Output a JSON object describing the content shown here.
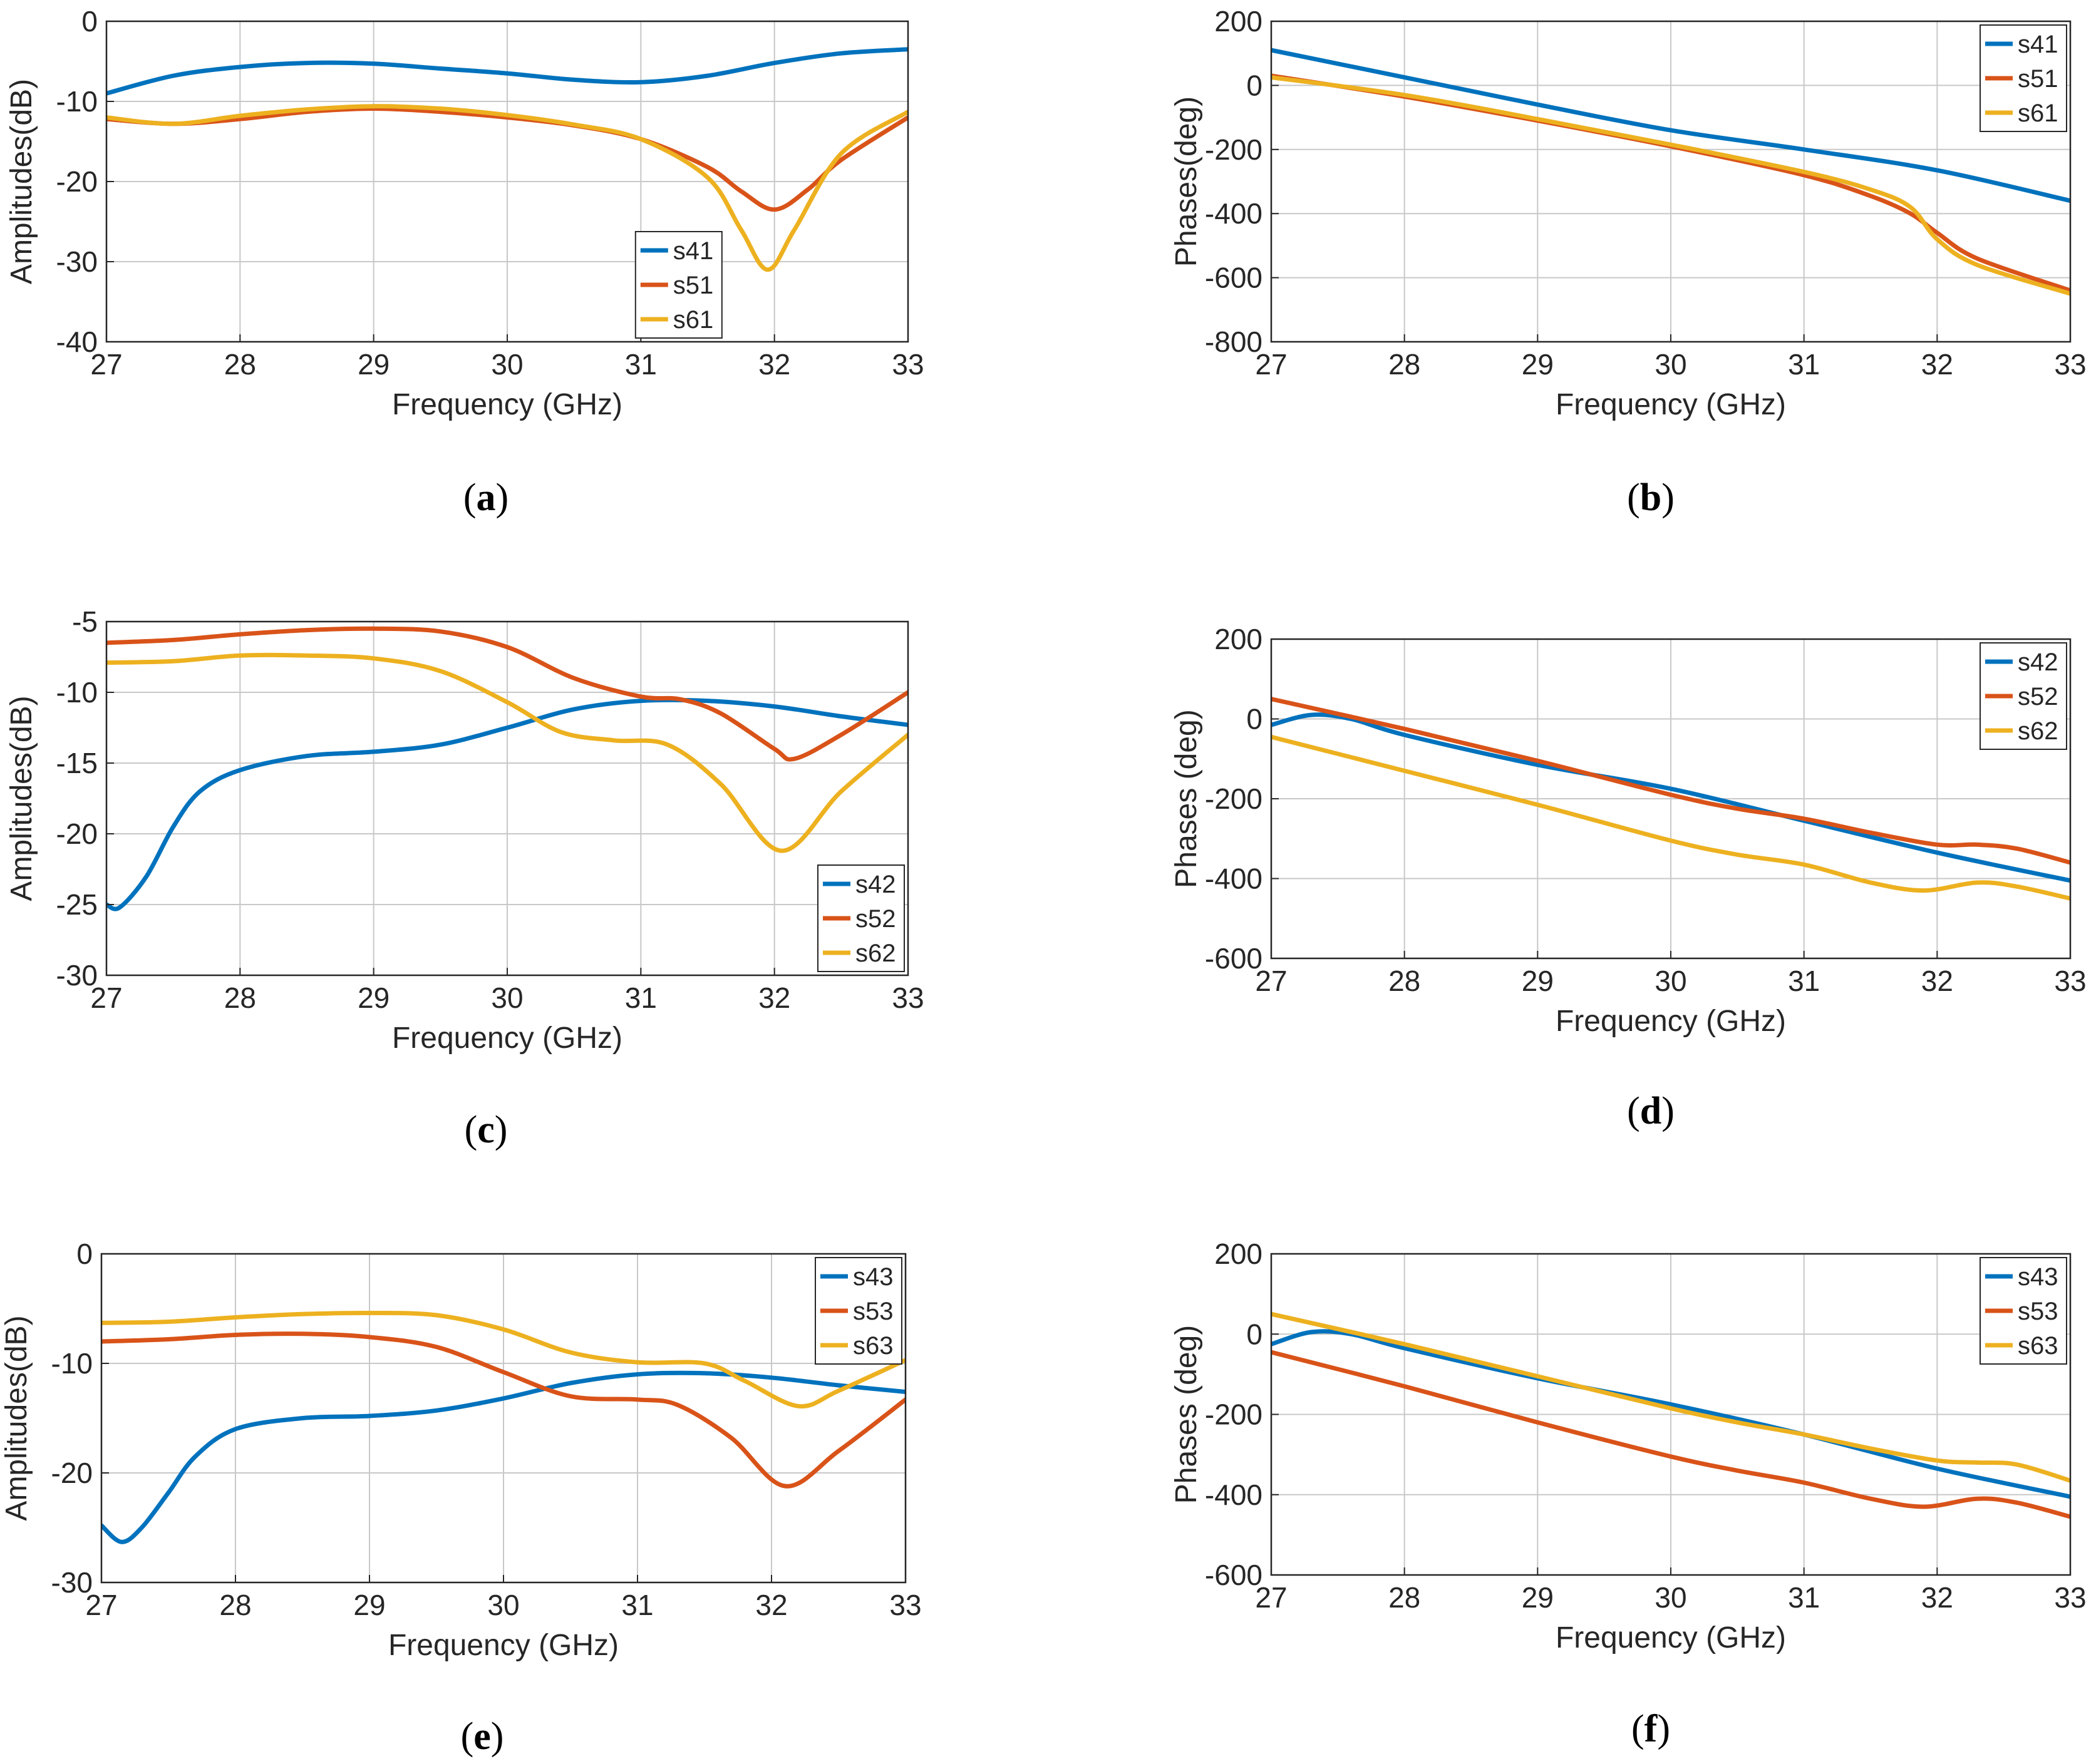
{
  "chart_data": [
    {
      "type": "line",
      "panel": "a",
      "caption": "a",
      "xlabel": "Frequency (GHz)",
      "ylabel": "Amplitudes(dB)",
      "xlim": [
        27,
        33
      ],
      "ylim": [
        -40,
        0
      ],
      "xticks": [
        27,
        28,
        29,
        30,
        31,
        32,
        33
      ],
      "yticks": [
        -40,
        -30,
        -20,
        -10,
        0
      ],
      "grid": true,
      "legend_position": "bottom-center",
      "series": [
        {
          "name": "s41",
          "color": "#0072BD",
          "x": [
            27,
            27.5,
            28,
            28.5,
            29,
            29.5,
            30,
            30.5,
            31,
            31.5,
            32,
            32.5,
            33
          ],
          "y": [
            -9,
            -6.8,
            -5.7,
            -5.2,
            -5.3,
            -5.9,
            -6.5,
            -7.3,
            -7.6,
            -6.8,
            -5.2,
            -4,
            -3.5
          ]
        },
        {
          "name": "s51",
          "color": "#D95319",
          "x": [
            27,
            27.5,
            28,
            28.5,
            29,
            29.5,
            30,
            30.5,
            31,
            31.5,
            31.75,
            32,
            32.25,
            32.5,
            33
          ],
          "y": [
            -12.2,
            -12.8,
            -12.2,
            -11.3,
            -10.9,
            -11.3,
            -12,
            -13,
            -14.7,
            -18.2,
            -21.2,
            -23.5,
            -21,
            -17.3,
            -12
          ]
        },
        {
          "name": "s61",
          "color": "#EDB120",
          "x": [
            27,
            27.5,
            28,
            28.5,
            29,
            29.5,
            30,
            30.5,
            31,
            31.5,
            31.75,
            31.95,
            32.15,
            32.5,
            33
          ],
          "y": [
            -12,
            -12.8,
            -11.8,
            -11,
            -10.6,
            -10.9,
            -11.7,
            -12.9,
            -14.7,
            -19.5,
            -26,
            -31,
            -26,
            -16.5,
            -11.3
          ]
        }
      ]
    },
    {
      "type": "line",
      "panel": "b",
      "caption": "b",
      "xlabel": "Frequency (GHz)",
      "ylabel": "Phases(deg)",
      "xlim": [
        27,
        33
      ],
      "ylim": [
        -800,
        200
      ],
      "xticks": [
        27,
        28,
        29,
        30,
        31,
        32,
        33
      ],
      "yticks": [
        -800,
        -600,
        -400,
        -200,
        0,
        200
      ],
      "grid": true,
      "legend_position": "top-right",
      "series": [
        {
          "name": "s41",
          "color": "#0072BD",
          "x": [
            27,
            28,
            29,
            30,
            31,
            32,
            33
          ],
          "y": [
            110,
            25,
            -60,
            -140,
            -200,
            -265,
            -360
          ]
        },
        {
          "name": "s51",
          "color": "#D95319",
          "x": [
            27,
            28,
            29,
            30,
            31,
            31.5,
            31.8,
            32,
            32.3,
            33
          ],
          "y": [
            30,
            -35,
            -110,
            -190,
            -280,
            -345,
            -400,
            -460,
            -540,
            -640
          ]
        },
        {
          "name": "s61",
          "color": "#EDB120",
          "x": [
            27,
            28,
            29,
            30,
            31,
            31.5,
            31.8,
            32,
            32.3,
            33
          ],
          "y": [
            25,
            -30,
            -105,
            -185,
            -270,
            -325,
            -380,
            -480,
            -560,
            -650
          ]
        }
      ]
    },
    {
      "type": "line",
      "panel": "c",
      "caption": "c",
      "xlabel": "Frequency (GHz)",
      "ylabel": "Amplitudes(dB)",
      "xlim": [
        27,
        33
      ],
      "ylim": [
        -30,
        -5
      ],
      "xticks": [
        27,
        28,
        29,
        30,
        31,
        32,
        33
      ],
      "yticks": [
        -30,
        -25,
        -20,
        -15,
        -10,
        -5
      ],
      "grid": true,
      "legend_position": "bottom-right",
      "series": [
        {
          "name": "s42",
          "color": "#0072BD",
          "x": [
            27,
            27.1,
            27.3,
            27.5,
            27.7,
            28,
            28.5,
            29,
            29.5,
            30,
            30.5,
            31,
            31.5,
            32,
            32.5,
            33
          ],
          "y": [
            -25,
            -25.2,
            -23,
            -19.5,
            -17,
            -15.5,
            -14.5,
            -14.2,
            -13.7,
            -12.5,
            -11.2,
            -10.6,
            -10.6,
            -11,
            -11.7,
            -12.3
          ]
        },
        {
          "name": "s52",
          "color": "#D95319",
          "x": [
            27,
            27.5,
            28,
            28.5,
            29,
            29.5,
            30,
            30.5,
            31,
            31.3,
            31.6,
            32,
            32.15,
            32.5,
            33
          ],
          "y": [
            -6.5,
            -6.3,
            -5.9,
            -5.6,
            -5.5,
            -5.7,
            -6.8,
            -9,
            -10.3,
            -10.5,
            -11.5,
            -14,
            -14.7,
            -13,
            -10
          ]
        },
        {
          "name": "s62",
          "color": "#EDB120",
          "x": [
            27,
            27.5,
            28,
            28.5,
            29,
            29.5,
            30,
            30.4,
            30.8,
            31.2,
            31.6,
            32.05,
            32.5,
            33
          ],
          "y": [
            -7.9,
            -7.8,
            -7.4,
            -7.4,
            -7.6,
            -8.5,
            -10.7,
            -12.8,
            -13.4,
            -13.7,
            -16.5,
            -21.2,
            -17,
            -13
          ]
        }
      ]
    },
    {
      "type": "line",
      "panel": "d",
      "caption": "d",
      "xlabel": "Frequency (GHz)",
      "ylabel": "Phases (deg)",
      "xlim": [
        27,
        33
      ],
      "ylim": [
        -600,
        200
      ],
      "xticks": [
        27,
        28,
        29,
        30,
        31,
        32,
        33
      ],
      "yticks": [
        -600,
        -400,
        -200,
        0,
        200
      ],
      "grid": true,
      "legend_position": "top-right",
      "series": [
        {
          "name": "s42",
          "color": "#0072BD",
          "x": [
            27,
            27.3,
            27.6,
            28,
            29,
            30,
            31,
            32,
            33
          ],
          "y": [
            -15,
            10,
            0,
            -40,
            -115,
            -175,
            -255,
            -335,
            -405
          ]
        },
        {
          "name": "s52",
          "color": "#D95319",
          "x": [
            27,
            28,
            29,
            30,
            30.5,
            31,
            31.5,
            32,
            32.3,
            32.6,
            33
          ],
          "y": [
            50,
            -25,
            -105,
            -190,
            -225,
            -250,
            -285,
            -315,
            -315,
            -325,
            -360
          ]
        },
        {
          "name": "s62",
          "color": "#EDB120",
          "x": [
            27,
            28,
            29,
            30,
            30.5,
            31,
            31.5,
            31.9,
            32.3,
            32.6,
            33
          ],
          "y": [
            -45,
            -130,
            -215,
            -305,
            -340,
            -365,
            -410,
            -430,
            -410,
            -420,
            -450
          ]
        }
      ]
    },
    {
      "type": "line",
      "panel": "e",
      "caption": "e",
      "xlabel": "Frequency (GHz)",
      "ylabel": "Amplitudes(dB)",
      "xlim": [
        27,
        33
      ],
      "ylim": [
        -30,
        0
      ],
      "xticks": [
        27,
        28,
        29,
        30,
        31,
        32,
        33
      ],
      "yticks": [
        -30,
        -20,
        -10,
        0
      ],
      "grid": true,
      "legend_position": "top-right",
      "series": [
        {
          "name": "s43",
          "color": "#0072BD",
          "x": [
            27,
            27.15,
            27.3,
            27.5,
            27.7,
            28,
            28.5,
            29,
            29.5,
            30,
            30.5,
            31,
            31.5,
            32,
            32.5,
            33
          ],
          "y": [
            -24.8,
            -26.3,
            -25,
            -21.8,
            -18.5,
            -16,
            -15,
            -14.8,
            -14.3,
            -13.2,
            -11.8,
            -11,
            -10.9,
            -11.3,
            -12,
            -12.6
          ]
        },
        {
          "name": "s53",
          "color": "#D95319",
          "x": [
            27,
            27.5,
            28,
            28.5,
            29,
            29.5,
            30,
            30.5,
            31,
            31.3,
            31.7,
            32.1,
            32.5,
            33
          ],
          "y": [
            -8,
            -7.8,
            -7.4,
            -7.3,
            -7.6,
            -8.5,
            -10.8,
            -13,
            -13.3,
            -13.8,
            -16.8,
            -21.2,
            -18,
            -13.3
          ]
        },
        {
          "name": "s63",
          "color": "#EDB120",
          "x": [
            27,
            27.5,
            28,
            28.5,
            29,
            29.5,
            30,
            30.5,
            31,
            31.5,
            31.8,
            32.2,
            32.5,
            33
          ],
          "y": [
            -6.3,
            -6.2,
            -5.8,
            -5.5,
            -5.4,
            -5.6,
            -6.9,
            -9,
            -9.9,
            -10,
            -11.6,
            -13.9,
            -12.5,
            -9.7
          ]
        }
      ]
    },
    {
      "type": "line",
      "panel": "f",
      "caption": "f",
      "xlabel": "Frequency (GHz)",
      "ylabel": "Phases (deg)",
      "xlim": [
        27,
        33
      ],
      "ylim": [
        -600,
        200
      ],
      "xticks": [
        27,
        28,
        29,
        30,
        31,
        32,
        33
      ],
      "yticks": [
        -600,
        -400,
        -200,
        0,
        200
      ],
      "grid": true,
      "legend_position": "top-right",
      "series": [
        {
          "name": "s43",
          "color": "#0072BD",
          "x": [
            27,
            27.3,
            27.6,
            28,
            29,
            30,
            31,
            32,
            33
          ],
          "y": [
            -25,
            5,
            0,
            -35,
            -110,
            -175,
            -250,
            -335,
            -405
          ]
        },
        {
          "name": "s53",
          "color": "#D95319",
          "x": [
            27,
            28,
            29,
            30,
            30.5,
            31,
            31.5,
            31.9,
            32.3,
            32.6,
            33
          ],
          "y": [
            -45,
            -130,
            -220,
            -305,
            -340,
            -370,
            -410,
            -430,
            -410,
            -420,
            -455
          ]
        },
        {
          "name": "s63",
          "color": "#EDB120",
          "x": [
            27,
            28,
            29,
            30,
            30.5,
            31,
            31.5,
            32,
            32.3,
            32.6,
            33
          ],
          "y": [
            50,
            -25,
            -105,
            -185,
            -220,
            -250,
            -285,
            -315,
            -320,
            -325,
            -365
          ]
        }
      ]
    }
  ]
}
